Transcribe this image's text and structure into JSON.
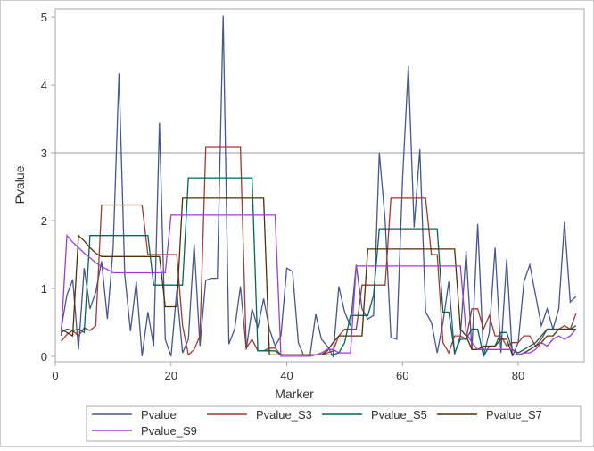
{
  "chart_data": {
    "type": "line",
    "xlabel": "Marker",
    "ylabel": "Pvalue",
    "xlim": [
      0,
      91.4
    ],
    "ylim": [
      -0.08,
      5.12
    ],
    "xticks": [
      0,
      20,
      40,
      60,
      80
    ],
    "yticks": [
      0,
      1,
      2,
      3,
      4,
      5
    ],
    "reference_line_y": 3,
    "grid": false,
    "legend_position": "bottom",
    "x": [
      1,
      2,
      3,
      4,
      5,
      6,
      7,
      8,
      9,
      10,
      11,
      12,
      13,
      14,
      15,
      16,
      17,
      18,
      19,
      20,
      21,
      22,
      23,
      24,
      25,
      26,
      27,
      28,
      29,
      30,
      31,
      32,
      33,
      34,
      35,
      36,
      37,
      38,
      39,
      40,
      41,
      42,
      43,
      44,
      45,
      46,
      47,
      48,
      49,
      50,
      51,
      52,
      53,
      54,
      55,
      56,
      57,
      58,
      59,
      60,
      61,
      62,
      63,
      64,
      65,
      66,
      67,
      68,
      69,
      70,
      71,
      72,
      73,
      74,
      75,
      76,
      77,
      78,
      79,
      80,
      81,
      82,
      83,
      84,
      85,
      86,
      87,
      88,
      89,
      90
    ],
    "series": [
      {
        "name": "Pvalue",
        "color": "#445694",
        "values": [
          0.4,
          0.9,
          1.13,
          0.1,
          1.3,
          0.7,
          0.95,
          1.4,
          0.55,
          1.6,
          4.17,
          1.2,
          0.37,
          1.1,
          0.0,
          0.65,
          0.15,
          3.44,
          0.25,
          0.0,
          0.97,
          0.05,
          0.25,
          1.65,
          0.15,
          1.12,
          1.15,
          1.15,
          5.02,
          0.18,
          0.4,
          1.03,
          0.1,
          0.7,
          0.42,
          0.85,
          0.4,
          0.15,
          0.3,
          1.3,
          1.25,
          0.2,
          0.0,
          0.0,
          0.62,
          0.25,
          0.15,
          0.0,
          1.03,
          0.65,
          0.45,
          1.35,
          0.7,
          0.55,
          0.6,
          3.0,
          2.0,
          0.28,
          0.25,
          2.6,
          4.28,
          1.9,
          3.05,
          0.65,
          0.5,
          0.05,
          0.5,
          1.1,
          0.03,
          0.3,
          1.55,
          0.1,
          1.95,
          0.0,
          0.35,
          1.6,
          0.05,
          1.43,
          0.0,
          0.2,
          1.1,
          1.35,
          0.9,
          0.45,
          0.7,
          0.4,
          0.7,
          1.98,
          0.8,
          0.88
        ]
      },
      {
        "name": "Pvalue_S3",
        "color": "#A23A2E",
        "values": [
          0.22,
          0.32,
          0.38,
          0.3,
          0.42,
          0.38,
          0.45,
          2.23,
          2.23,
          2.23,
          2.23,
          2.23,
          2.23,
          2.23,
          2.23,
          1.5,
          1.5,
          1.5,
          1.5,
          1.5,
          1.5,
          0.45,
          0.02,
          0.1,
          0.3,
          3.08,
          3.08,
          3.08,
          3.08,
          3.08,
          3.08,
          3.08,
          0.12,
          0.25,
          0.08,
          0.08,
          0.12,
          0.12,
          0.02,
          0.02,
          0.02,
          0.02,
          0.02,
          0.02,
          0.02,
          0.02,
          0.05,
          0.08,
          0.3,
          0.4,
          0.4,
          0.4,
          1.05,
          1.05,
          1.05,
          1.05,
          1.05,
          2.33,
          2.33,
          2.33,
          2.33,
          2.33,
          2.33,
          2.33,
          1.5,
          1.5,
          0.2,
          0.05,
          0.3,
          0.3,
          0.25,
          0.7,
          0.7,
          0.4,
          0.6,
          0.3,
          0.3,
          0.15,
          0.2,
          0.2,
          0.3,
          0.3,
          0.15,
          0.25,
          0.4,
          0.4,
          0.4,
          0.45,
          0.4,
          0.63
        ]
      },
      {
        "name": "Pvalue_S5",
        "color": "#01665E",
        "values": [
          0.35,
          0.4,
          0.38,
          0.4,
          0.35,
          1.78,
          1.78,
          1.78,
          1.78,
          1.78,
          1.78,
          1.78,
          1.78,
          1.78,
          1.78,
          1.78,
          1.05,
          1.05,
          1.05,
          1.05,
          1.05,
          1.05,
          2.63,
          2.63,
          2.63,
          2.63,
          2.63,
          2.63,
          2.63,
          2.63,
          2.63,
          2.63,
          2.63,
          2.63,
          0.08,
          0.08,
          0.08,
          0.08,
          0.02,
          0.02,
          0.02,
          0.02,
          0.02,
          0.02,
          0.02,
          0.02,
          0.02,
          0.02,
          0.05,
          0.2,
          0.6,
          0.6,
          0.6,
          0.6,
          0.9,
          1.88,
          1.88,
          1.88,
          1.88,
          1.88,
          1.88,
          1.88,
          1.88,
          1.88,
          1.88,
          1.88,
          0.65,
          0.65,
          0.05,
          0.25,
          0.25,
          0.4,
          0.4,
          0.0,
          0.15,
          0.15,
          0.35,
          0.35,
          0.1,
          0.05,
          0.1,
          0.15,
          0.2,
          0.3,
          0.4,
          0.4,
          0.4,
          0.4,
          0.4,
          0.45
        ]
      },
      {
        "name": "Pvalue_S7",
        "color": "#543005",
        "values": [
          0.4,
          0.35,
          0.3,
          1.78,
          1.7,
          1.6,
          1.52,
          1.47,
          1.47,
          1.47,
          1.47,
          1.47,
          1.47,
          1.47,
          1.47,
          1.47,
          1.47,
          1.47,
          0.73,
          0.73,
          0.73,
          2.33,
          2.33,
          2.33,
          2.33,
          2.33,
          2.33,
          2.33,
          2.33,
          2.33,
          2.33,
          2.33,
          2.33,
          2.33,
          2.33,
          2.33,
          0.02,
          0.02,
          0.02,
          0.02,
          0.02,
          0.02,
          0.02,
          0.02,
          0.02,
          0.02,
          0.08,
          0.2,
          0.3,
          0.3,
          0.3,
          0.3,
          0.3,
          1.58,
          1.58,
          1.58,
          1.58,
          1.58,
          1.58,
          1.58,
          1.58,
          1.58,
          1.58,
          1.58,
          1.58,
          1.58,
          1.58,
          1.58,
          1.58,
          0.4,
          0.3,
          0.1,
          0.1,
          0.15,
          0.15,
          0.15,
          0.25,
          0.25,
          0.02,
          0.02,
          0.05,
          0.1,
          0.15,
          0.2,
          0.3,
          0.3,
          0.4,
          0.4,
          0.4,
          0.4
        ]
      },
      {
        "name": "Pvalue_S9",
        "color": "#9D3CDB",
        "values": [
          0.3,
          1.78,
          1.68,
          1.6,
          1.52,
          1.45,
          1.38,
          1.32,
          1.28,
          1.23,
          1.23,
          1.23,
          1.23,
          1.23,
          1.23,
          1.23,
          1.23,
          1.23,
          1.23,
          2.08,
          2.08,
          2.08,
          2.08,
          2.08,
          2.08,
          2.08,
          2.08,
          2.08,
          2.08,
          2.08,
          2.08,
          2.08,
          2.08,
          2.08,
          2.08,
          2.08,
          2.08,
          2.08,
          0.0,
          0.0,
          0.0,
          0.0,
          0.0,
          0.0,
          0.02,
          0.05,
          0.1,
          0.1,
          0.05,
          0.05,
          0.05,
          1.33,
          1.33,
          1.33,
          1.33,
          1.33,
          1.33,
          1.33,
          1.33,
          1.33,
          1.33,
          1.33,
          1.33,
          1.33,
          1.33,
          1.33,
          1.33,
          1.33,
          1.33,
          1.33,
          0.35,
          0.2,
          0.1,
          0.1,
          0.1,
          0.1,
          0.1,
          0.1,
          0.1,
          0.02,
          0.05,
          0.05,
          0.1,
          0.2,
          0.15,
          0.25,
          0.3,
          0.25,
          0.3,
          0.4
        ]
      }
    ]
  }
}
